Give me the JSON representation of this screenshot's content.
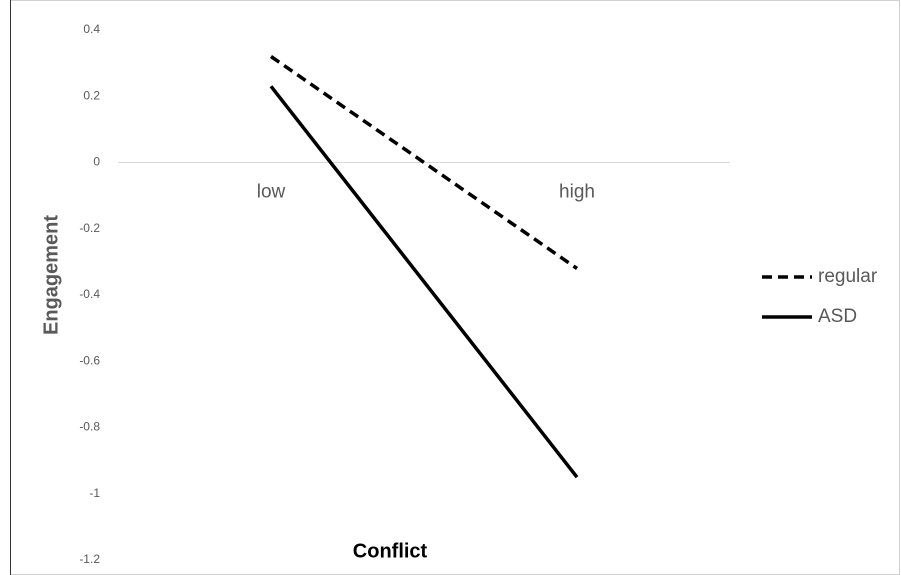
{
  "chart_data": {
    "type": "line",
    "x_label": "Conflict",
    "y_label": "Engagement",
    "categories": [
      "low",
      "high"
    ],
    "series": [
      {
        "name": "regular",
        "color": "#000000",
        "dash": "dashed",
        "values": [
          0.32,
          -0.32
        ]
      },
      {
        "name": "ASD",
        "color": "#000000",
        "dash": "solid",
        "values": [
          0.23,
          -0.95
        ]
      }
    ],
    "ylim": [
      -1.2,
      0.4
    ],
    "yticks": [
      0.4,
      0.2,
      0,
      -0.2,
      -0.4,
      -0.6,
      -0.8,
      -1,
      -1.2
    ],
    "legend": "right"
  }
}
